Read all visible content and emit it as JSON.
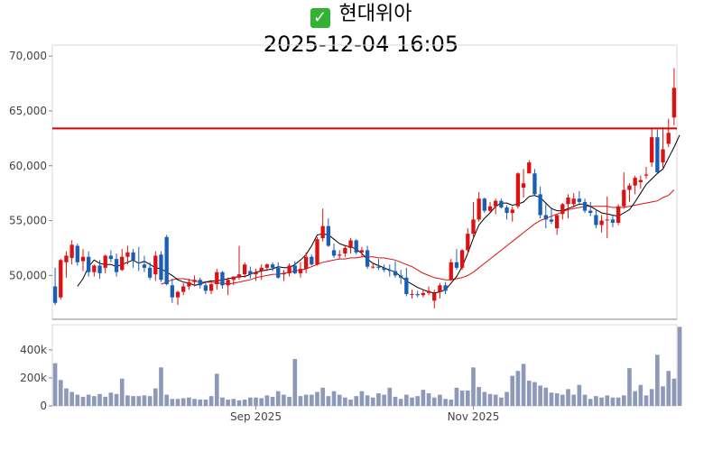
{
  "header": {
    "title": "현대위아",
    "status_icon": "check-icon",
    "datetime": "2025-12-04 16:05"
  },
  "chart_data": [
    {
      "type": "candlestick",
      "title": "현대위아",
      "subtitle": "2025-12-04 16:05",
      "ylim": [
        46000,
        71000
      ],
      "y_ticks": [
        50000,
        55000,
        60000,
        65000,
        70000
      ],
      "y_tick_labels": [
        "50,000",
        "55,000",
        "60,000",
        "65,000",
        "70,000"
      ],
      "x_tick_labels": [
        "Sep 2025",
        "Nov 2025"
      ],
      "x_tick_index": [
        36,
        75
      ],
      "reference_line": {
        "value": 63400,
        "color": "#dd0000"
      },
      "up_color": "#dd1111",
      "down_color": "#1a5fb4",
      "ma_short_color": "#000000",
      "ma_long_color": "#dd1111",
      "ohlc": [
        [
          49000,
          50700,
          47300,
          47500
        ],
        [
          48000,
          51500,
          47800,
          51400
        ],
        [
          51200,
          52200,
          49800,
          51800
        ],
        [
          51600,
          53200,
          51000,
          52800
        ],
        [
          52700,
          52900,
          50900,
          51200
        ],
        [
          51300,
          52400,
          50400,
          51700
        ],
        [
          51700,
          52200,
          49900,
          50300
        ],
        [
          50300,
          51000,
          49900,
          50900
        ],
        [
          50900,
          51400,
          49700,
          50200
        ],
        [
          50700,
          51900,
          50200,
          51800
        ],
        [
          51800,
          52300,
          51200,
          51500
        ],
        [
          51500,
          52000,
          49900,
          50300
        ],
        [
          50500,
          52400,
          50400,
          51700
        ],
        [
          51700,
          52700,
          51000,
          52100
        ],
        [
          52100,
          52400,
          50700,
          51400
        ],
        [
          51200,
          52600,
          50400,
          51100
        ],
        [
          51000,
          51800,
          50300,
          50700
        ],
        [
          50700,
          51200,
          49600,
          49800
        ],
        [
          50100,
          52200,
          49500,
          51800
        ],
        [
          51900,
          52200,
          49400,
          49600
        ],
        [
          53500,
          53700,
          49100,
          49200
        ],
        [
          49100,
          49700,
          47500,
          48000
        ],
        [
          48000,
          48600,
          47300,
          48500
        ],
        [
          48500,
          49300,
          48200,
          49000
        ],
        [
          49000,
          49700,
          48700,
          49400
        ],
        [
          49400,
          50000,
          49000,
          49600
        ],
        [
          49600,
          49800,
          48800,
          49100
        ],
        [
          49100,
          49500,
          48300,
          48600
        ],
        [
          48600,
          49400,
          48300,
          49200
        ],
        [
          49200,
          50600,
          48700,
          50300
        ],
        [
          50300,
          50400,
          48800,
          49100
        ],
        [
          49100,
          49800,
          48200,
          49600
        ],
        [
          49600,
          49900,
          49100,
          49900
        ],
        [
          49800,
          52700,
          49600,
          50100
        ],
        [
          50100,
          51200,
          49800,
          51000
        ],
        [
          50400,
          50800,
          49700,
          50100
        ],
        [
          50100,
          50600,
          49500,
          50300
        ],
        [
          50400,
          51000,
          49600,
          50700
        ],
        [
          50700,
          51100,
          50400,
          51000
        ],
        [
          51000,
          51200,
          50400,
          50700
        ],
        [
          50700,
          51200,
          49700,
          49800
        ],
        [
          50100,
          50500,
          49500,
          50200
        ],
        [
          50200,
          51100,
          49900,
          50900
        ],
        [
          50900,
          51300,
          50100,
          50200
        ],
        [
          50200,
          51200,
          49800,
          50600
        ],
        [
          50600,
          52100,
          50200,
          51700
        ],
        [
          51700,
          51900,
          50900,
          51000
        ],
        [
          51000,
          53500,
          50900,
          53300
        ],
        [
          53400,
          56100,
          53100,
          54500
        ],
        [
          54500,
          55200,
          52600,
          52700
        ],
        [
          52300,
          52900,
          51600,
          51800
        ],
        [
          51800,
          52300,
          51500,
          51900
        ],
        [
          52000,
          52800,
          51700,
          52500
        ],
        [
          52500,
          53400,
          52000,
          53200
        ],
        [
          53200,
          53300,
          51900,
          52100
        ],
        [
          52100,
          52600,
          51700,
          52300
        ],
        [
          52300,
          52700,
          50600,
          50800
        ],
        [
          50800,
          51200,
          50600,
          50800
        ],
        [
          50800,
          51500,
          50500,
          50700
        ],
        [
          50700,
          51000,
          50300,
          50500
        ],
        [
          50500,
          51000,
          49900,
          50400
        ],
        [
          50400,
          51300,
          49800,
          50000
        ],
        [
          50000,
          50500,
          49200,
          49800
        ],
        [
          49800,
          50700,
          48100,
          48300
        ],
        [
          48300,
          48700,
          47900,
          48300
        ],
        [
          48300,
          48600,
          48000,
          48200
        ],
        [
          48200,
          48700,
          48000,
          48400
        ],
        [
          48400,
          49000,
          48200,
          48600
        ],
        [
          47700,
          48700,
          47000,
          48400
        ],
        [
          48500,
          49300,
          47900,
          49100
        ],
        [
          49100,
          49400,
          48300,
          48600
        ],
        [
          49600,
          51500,
          49500,
          51200
        ],
        [
          51200,
          52400,
          50500,
          50700
        ],
        [
          50700,
          52400,
          50500,
          52300
        ],
        [
          52300,
          54300,
          52000,
          53800
        ],
        [
          53800,
          56700,
          53500,
          55100
        ],
        [
          55100,
          57600,
          54900,
          57000
        ],
        [
          57000,
          57100,
          55700,
          55900
        ],
        [
          55900,
          56700,
          55700,
          56300
        ],
        [
          56300,
          57000,
          55600,
          56800
        ],
        [
          56800,
          57000,
          56100,
          56200
        ],
        [
          56200,
          56400,
          55100,
          55700
        ],
        [
          55700,
          56300,
          54900,
          56000
        ],
        [
          56300,
          59400,
          56100,
          59300
        ],
        [
          58000,
          59700,
          57100,
          58400
        ],
        [
          59300,
          60500,
          59300,
          60300
        ],
        [
          59300,
          59700,
          57300,
          57400
        ],
        [
          57400,
          58100,
          55200,
          55500
        ],
        [
          55500,
          56500,
          54300,
          55100
        ],
        [
          55100,
          56200,
          54700,
          54900
        ],
        [
          54300,
          55600,
          53700,
          55500
        ],
        [
          55600,
          56600,
          55100,
          56500
        ],
        [
          56500,
          57400,
          55200,
          57100
        ],
        [
          56500,
          57500,
          56200,
          57000
        ],
        [
          57000,
          57700,
          56400,
          56700
        ],
        [
          56700,
          57000,
          55700,
          55900
        ],
        [
          55900,
          56700,
          55400,
          55700
        ],
        [
          55500,
          56000,
          54300,
          54600
        ],
        [
          54600,
          55500,
          53900,
          55000
        ],
        [
          55100,
          57200,
          53400,
          55100
        ],
        [
          55100,
          55500,
          54400,
          54800
        ],
        [
          54800,
          56500,
          54600,
          56300
        ],
        [
          56300,
          59400,
          56100,
          57800
        ],
        [
          57800,
          58400,
          56700,
          58200
        ],
        [
          58200,
          59100,
          57400,
          58900
        ],
        [
          58500,
          59100,
          57900,
          58700
        ],
        [
          59100,
          59900,
          58800,
          59200
        ],
        [
          60300,
          63400,
          59900,
          62600
        ],
        [
          62600,
          63300,
          59300,
          59400
        ],
        [
          60300,
          63500,
          59800,
          61500
        ],
        [
          62000,
          64300,
          61700,
          63000
        ],
        [
          64400,
          68900,
          63700,
          67100
        ]
      ],
      "ma_short": [
        null,
        null,
        null,
        null,
        49000,
        49700,
        50800,
        51400,
        51100,
        51000,
        51000,
        50800,
        51000,
        51200,
        51400,
        51100,
        51300,
        51000,
        50700,
        50600,
        50300,
        50000,
        49600,
        49400,
        49300,
        49100,
        49200,
        49400,
        49500,
        49500,
        49600,
        49700,
        49800,
        49900,
        49900,
        50100,
        50300,
        50400,
        50500,
        50600,
        50800,
        50700,
        50700,
        51000,
        51400,
        51900,
        52700,
        53700,
        53800,
        53700,
        53300,
        52900,
        52700,
        52600,
        52400,
        52000,
        51500,
        51100,
        50900,
        50700,
        50500,
        50300,
        49900,
        49500,
        49200,
        48900,
        48700,
        48500,
        48400,
        48500,
        48700,
        49300,
        49900,
        50800,
        52000,
        53400,
        54600,
        55200,
        55700,
        56300,
        56600,
        56600,
        56400,
        56500,
        56700,
        57200,
        57300,
        57100,
        56600,
        56100,
        55900,
        55900,
        56100,
        56300,
        56500,
        56500,
        56300,
        56000,
        55700,
        55600,
        55500,
        55400,
        55700,
        56000,
        56700,
        57500,
        58300,
        58800,
        59300,
        59700,
        60700,
        61700,
        62800
      ],
      "ma_long": [
        null,
        null,
        null,
        null,
        null,
        null,
        null,
        null,
        null,
        null,
        null,
        null,
        null,
        null,
        null,
        null,
        null,
        null,
        null,
        49200,
        49400,
        49600,
        49700,
        49700,
        49600,
        49500,
        49400,
        49400,
        49400,
        49300,
        49300,
        49200,
        49300,
        49400,
        49500,
        49600,
        49800,
        49900,
        50000,
        50100,
        50100,
        50200,
        50300,
        50400,
        50500,
        50600,
        50800,
        51000,
        51200,
        51300,
        51400,
        51500,
        51500,
        51600,
        51600,
        51700,
        51700,
        51700,
        51600,
        51600,
        51500,
        51400,
        51200,
        51000,
        50800,
        50500,
        50200,
        50000,
        49800,
        49700,
        49600,
        49600,
        49700,
        49800,
        50000,
        50300,
        50700,
        51100,
        51500,
        51900,
        52300,
        52700,
        53100,
        53500,
        53900,
        54300,
        54700,
        55000,
        55200,
        55400,
        55600,
        55800,
        56000,
        56100,
        56200,
        56300,
        56300,
        56300,
        56300,
        56300,
        56200,
        56200,
        56200,
        56300,
        56400,
        56500,
        56600,
        56700,
        56800,
        57100,
        57300,
        57800
      ],
      "volume": [
        305000,
        185000,
        125000,
        100000,
        80000,
        65000,
        80000,
        70000,
        85000,
        65000,
        95000,
        85000,
        195000,
        75000,
        70000,
        70000,
        75000,
        70000,
        125000,
        275000,
        80000,
        50000,
        50000,
        55000,
        60000,
        50000,
        45000,
        45000,
        70000,
        230000,
        60000,
        45000,
        50000,
        40000,
        45000,
        60000,
        60000,
        55000,
        75000,
        65000,
        105000,
        80000,
        65000,
        335000,
        70000,
        80000,
        80000,
        100000,
        130000,
        70000,
        105000,
        80000,
        60000,
        45000,
        70000,
        105000,
        75000,
        60000,
        90000,
        80000,
        130000,
        65000,
        50000,
        80000,
        60000,
        70000,
        115000,
        90000,
        60000,
        80000,
        50000,
        45000,
        130000,
        110000,
        110000,
        275000,
        135000,
        100000,
        85000,
        80000,
        60000,
        100000,
        215000,
        250000,
        300000,
        180000,
        170000,
        145000,
        130000,
        95000,
        90000,
        80000,
        120000,
        80000,
        150000,
        80000,
        50000,
        70000,
        60000,
        75000,
        60000,
        60000,
        75000,
        270000,
        105000,
        150000,
        75000,
        120000,
        365000,
        140000,
        250000,
        195000,
        565000
      ],
      "volume_ticks": [
        0,
        200000,
        400000
      ],
      "volume_tick_labels": [
        "0",
        "200k",
        "400k"
      ]
    }
  ]
}
